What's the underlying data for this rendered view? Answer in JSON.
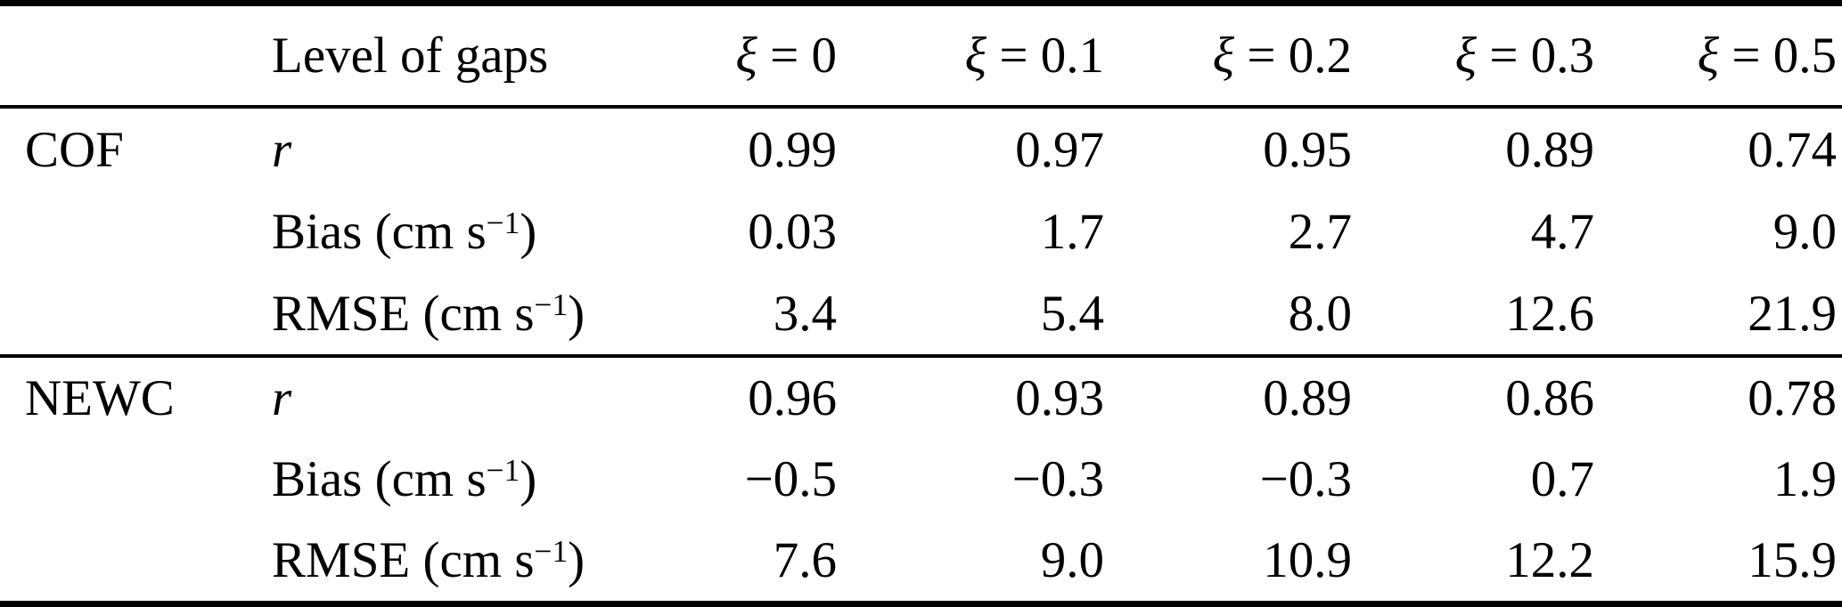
{
  "colors": {
    "background": "#ffffff",
    "text": "#000000",
    "rule": "#000000"
  },
  "table": {
    "header": {
      "group": "",
      "metric": "Level of gaps",
      "cols": [
        {
          "sym": "ξ",
          "eq": " = 0"
        },
        {
          "sym": "ξ",
          "eq": " = 0.1"
        },
        {
          "sym": "ξ",
          "eq": " = 0.2"
        },
        {
          "sym": "ξ",
          "eq": " = 0.3"
        },
        {
          "sym": "ξ",
          "eq": " = 0.5"
        }
      ]
    },
    "rows": [
      {
        "group": "COF",
        "metric": {
          "name": "r",
          "pre": "",
          "sup": "",
          "post": ""
        },
        "values": [
          "0.99",
          "0.97",
          "0.95",
          "0.89",
          "0.74"
        ]
      },
      {
        "group": "",
        "metric": {
          "name": "Bias",
          "pre": " (cm s",
          "sup": "−1",
          "post": ")"
        },
        "values": [
          "0.03",
          "1.7",
          "2.7",
          "4.7",
          "9.0"
        ]
      },
      {
        "group": "",
        "metric": {
          "name": "RMSE",
          "pre": " (cm s",
          "sup": "−1",
          "post": ")"
        },
        "values": [
          "3.4",
          "5.4",
          "8.0",
          "12.6",
          "21.9"
        ]
      },
      {
        "group": "NEWC",
        "metric": {
          "name": "r",
          "pre": "",
          "sup": "",
          "post": ""
        },
        "values": [
          "0.96",
          "0.93",
          "0.89",
          "0.86",
          "0.78"
        ]
      },
      {
        "group": "",
        "metric": {
          "name": "Bias",
          "pre": " (cm s",
          "sup": "−1",
          "post": ")"
        },
        "values": [
          "−0.5",
          "−0.3",
          "−0.3",
          "0.7",
          "1.9"
        ]
      },
      {
        "group": "",
        "metric": {
          "name": "RMSE",
          "pre": " (cm s",
          "sup": "−1",
          "post": ")"
        },
        "values": [
          "7.6",
          "9.0",
          "10.9",
          "12.2",
          "15.9"
        ]
      }
    ]
  },
  "chart_data": {
    "type": "table",
    "columns": [
      "",
      "Level of gaps",
      "ξ = 0",
      "ξ = 0.1",
      "ξ = 0.2",
      "ξ = 0.3",
      "ξ = 0.5"
    ],
    "rows": [
      [
        "COF",
        "r",
        0.99,
        0.97,
        0.95,
        0.89,
        0.74
      ],
      [
        "COF",
        "Bias (cm s−1)",
        0.03,
        1.7,
        2.7,
        4.7,
        9.0
      ],
      [
        "COF",
        "RMSE (cm s−1)",
        3.4,
        5.4,
        8.0,
        12.6,
        21.9
      ],
      [
        "NEWC",
        "r",
        0.96,
        0.93,
        0.89,
        0.86,
        0.78
      ],
      [
        "NEWC",
        "Bias (cm s−1)",
        -0.5,
        -0.3,
        -0.3,
        0.7,
        1.9
      ],
      [
        "NEWC",
        "RMSE (cm s−1)",
        7.6,
        9.0,
        10.9,
        12.2,
        15.9
      ]
    ]
  }
}
